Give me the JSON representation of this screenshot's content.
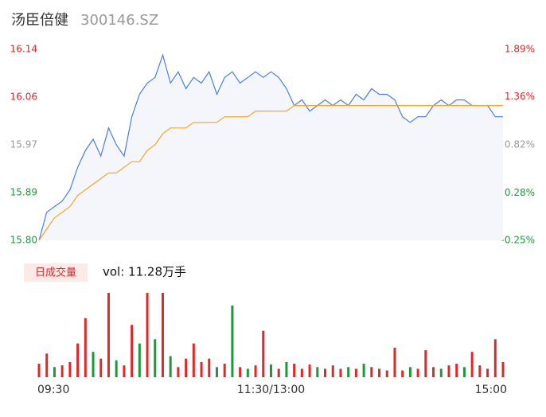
{
  "header": {
    "name": "汤臣倍健",
    "code": "300146.SZ"
  },
  "volume_tab": "日成交量",
  "volume_text": "vol: 11.28万手",
  "chart_data": [
    {
      "type": "line",
      "x": [
        0,
        4,
        8,
        12,
        16,
        20,
        24,
        28,
        32,
        36,
        40,
        44,
        48,
        52,
        56,
        60,
        64,
        68,
        72,
        76,
        80,
        84,
        88,
        92,
        96,
        100,
        104,
        108,
        112,
        116,
        120,
        124,
        128,
        132,
        136,
        140,
        144,
        148,
        152,
        156,
        160,
        164,
        168,
        172,
        176,
        180,
        184,
        188,
        192,
        196,
        200,
        204,
        208,
        212,
        216,
        220,
        224,
        228,
        232,
        236,
        240
      ],
      "xlim": [
        0,
        240
      ],
      "ylim": [
        15.8,
        16.14
      ],
      "yticks": [
        {
          "value": 15.8,
          "label": "15.80"
        },
        {
          "value": 15.885,
          "label": "15.89"
        },
        {
          "value": 15.97,
          "label": "15.97"
        },
        {
          "value": 16.055,
          "label": "16.06"
        },
        {
          "value": 16.14,
          "label": "16.14"
        }
      ],
      "ytick_colors": [
        "#1a9a3a",
        "#1a9a3a",
        "#999999",
        "#e02828",
        "#e02828"
      ],
      "y2lim": [
        -0.25,
        1.89
      ],
      "y2ticks": [
        {
          "value": -0.25,
          "label": "-0.25%"
        },
        {
          "value": 0.28,
          "label": "0.28%"
        },
        {
          "value": 0.82,
          "label": "0.82%"
        },
        {
          "value": 1.36,
          "label": "1.36%"
        },
        {
          "value": 1.89,
          "label": "1.89%"
        }
      ],
      "area_fill": "#f4f6fb",
      "series": [
        {
          "color": "#4a7fe0",
          "values": [
            15.8,
            15.85,
            15.86,
            15.87,
            15.89,
            15.93,
            15.96,
            15.98,
            15.95,
            16.0,
            15.97,
            15.95,
            16.02,
            16.06,
            16.08,
            16.09,
            16.13,
            16.08,
            16.1,
            16.07,
            16.09,
            16.08,
            16.1,
            16.06,
            16.09,
            16.1,
            16.08,
            16.09,
            16.1,
            16.09,
            16.1,
            16.09,
            16.07,
            16.04,
            16.05,
            16.03,
            16.04,
            16.05,
            16.04,
            16.05,
            16.04,
            16.06,
            16.05,
            16.07,
            16.06,
            16.06,
            16.05,
            16.02,
            16.01,
            16.02,
            16.02,
            16.04,
            16.05,
            16.04,
            16.05,
            16.05,
            16.04,
            16.04,
            16.04,
            16.02,
            16.02
          ]
        },
        {
          "color": "#f5a623",
          "values": [
            15.8,
            15.82,
            15.84,
            15.85,
            15.86,
            15.88,
            15.89,
            15.9,
            15.91,
            15.92,
            15.92,
            15.93,
            15.94,
            15.94,
            15.96,
            15.97,
            15.99,
            16.0,
            16.0,
            16.0,
            16.01,
            16.01,
            16.01,
            16.01,
            16.02,
            16.02,
            16.02,
            16.02,
            16.03,
            16.03,
            16.03,
            16.03,
            16.03,
            16.04,
            16.04,
            16.04,
            16.04,
            16.04,
            16.04,
            16.04,
            16.04,
            16.04,
            16.04,
            16.04,
            16.04,
            16.04,
            16.04,
            16.04,
            16.04,
            16.04,
            16.04,
            16.04,
            16.04,
            16.04,
            16.04,
            16.04,
            16.04,
            16.04,
            16.04,
            16.04,
            16.04
          ]
        }
      ]
    },
    {
      "type": "bar",
      "x": [
        0,
        4,
        8,
        12,
        16,
        20,
        24,
        28,
        32,
        36,
        40,
        44,
        48,
        52,
        56,
        60,
        64,
        68,
        72,
        76,
        80,
        84,
        88,
        92,
        96,
        100,
        104,
        108,
        112,
        116,
        120,
        124,
        128,
        132,
        136,
        140,
        144,
        148,
        152,
        156,
        160,
        164,
        168,
        172,
        176,
        180,
        184,
        188,
        192,
        196,
        200,
        204,
        208,
        212,
        216,
        220,
        224,
        228,
        232,
        236,
        240
      ],
      "xlim": [
        0,
        240
      ],
      "xticks": [
        {
          "value": 0,
          "label": "09:30"
        },
        {
          "value": 120,
          "label": "11:30/13:00"
        },
        {
          "value": 240,
          "label": "15:00"
        }
      ],
      "ylim": [
        0,
        100
      ],
      "values": [
        16,
        28,
        12,
        14,
        18,
        40,
        70,
        30,
        22,
        100,
        20,
        14,
        62,
        40,
        100,
        45,
        100,
        25,
        12,
        22,
        40,
        18,
        22,
        12,
        16,
        85,
        12,
        10,
        14,
        55,
        15,
        10,
        18,
        16,
        10,
        15,
        12,
        10,
        14,
        10,
        12,
        10,
        16,
        12,
        10,
        8,
        35,
        8,
        12,
        10,
        32,
        12,
        10,
        14,
        16,
        12,
        30,
        14,
        10,
        45,
        18
      ],
      "colors": [
        "#e02828",
        "#e02828",
        "#1a9a3a",
        "#e02828",
        "#e02828",
        "#e02828",
        "#e02828",
        "#1a9a3a",
        "#e02828",
        "#e02828",
        "#1a9a3a",
        "#e02828",
        "#e02828",
        "#1a9a3a",
        "#e02828",
        "#1a9a3a",
        "#e02828",
        "#1a9a3a",
        "#e02828",
        "#e02828",
        "#e02828",
        "#e02828",
        "#e02828",
        "#1a9a3a",
        "#e02828",
        "#1a9a3a",
        "#e02828",
        "#1a9a3a",
        "#e02828",
        "#e02828",
        "#1a9a3a",
        "#e02828",
        "#1a9a3a",
        "#e02828",
        "#e02828",
        "#e02828",
        "#1a9a3a",
        "#e02828",
        "#e02828",
        "#e02828",
        "#1a9a3a",
        "#e02828",
        "#1a9a3a",
        "#e02828",
        "#e02828",
        "#e02828",
        "#e02828",
        "#e02828",
        "#1a9a3a",
        "#e02828",
        "#e02828",
        "#e02828",
        "#1a9a3a",
        "#e02828",
        "#e02828",
        "#1a9a3a",
        "#e02828",
        "#e02828",
        "#e02828",
        "#e02828",
        "#e02828"
      ]
    }
  ]
}
